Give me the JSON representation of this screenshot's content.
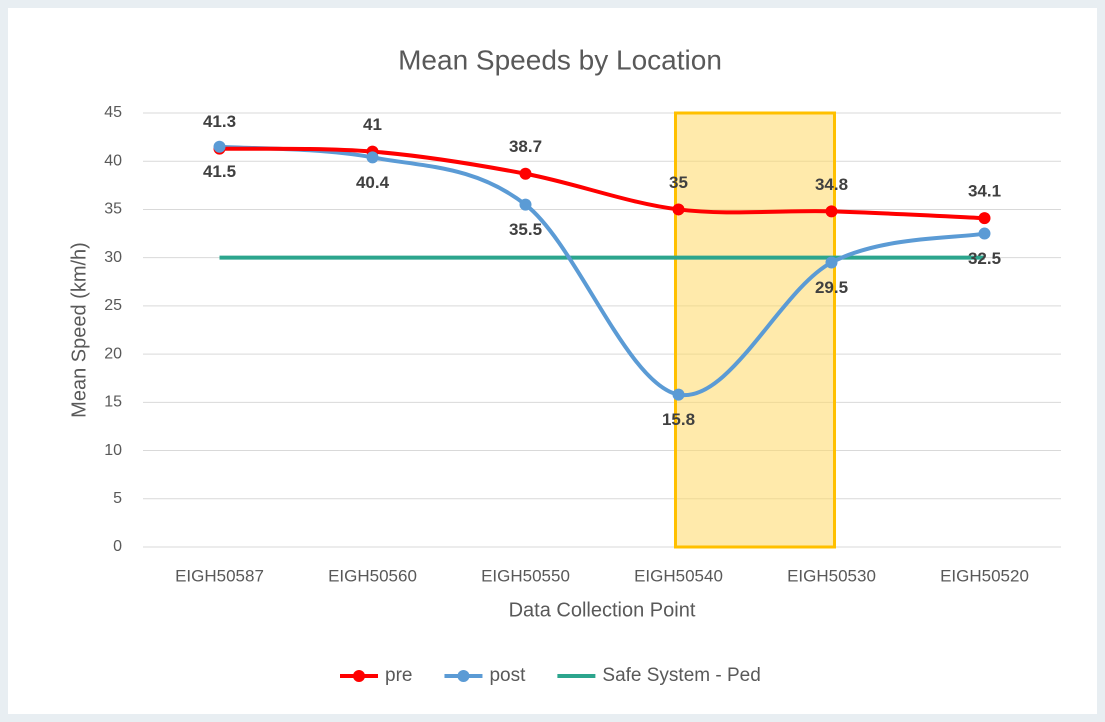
{
  "chart_data": {
    "type": "line",
    "title": "Mean Speeds by Location",
    "x_label": "Data Collection Point",
    "y_label": "Mean Speed (km/h)",
    "categories": [
      "EIGH50587",
      "EIGH50560",
      "EIGH50550",
      "EIGH50540",
      "EIGH50530",
      "EIGH50520"
    ],
    "series": [
      {
        "name": "pre",
        "color": "#ff0000",
        "values": [
          41.3,
          41,
          38.7,
          35,
          34.8,
          34.1
        ],
        "markers": true,
        "labels": "above"
      },
      {
        "name": "post",
        "color": "#5b9bd5",
        "values": [
          41.5,
          40.4,
          35.5,
          15.8,
          29.5,
          32.5
        ],
        "markers": true,
        "labels": "below"
      },
      {
        "name": "Safe System - Ped",
        "color": "#2ca58d",
        "values": [
          30,
          30,
          30,
          30,
          30,
          30
        ],
        "markers": false
      }
    ],
    "ylim": [
      0,
      45
    ],
    "yticks": [
      0,
      5,
      10,
      15,
      20,
      25,
      30,
      35,
      40,
      45
    ],
    "grid": true,
    "legend": "bottom"
  }
}
